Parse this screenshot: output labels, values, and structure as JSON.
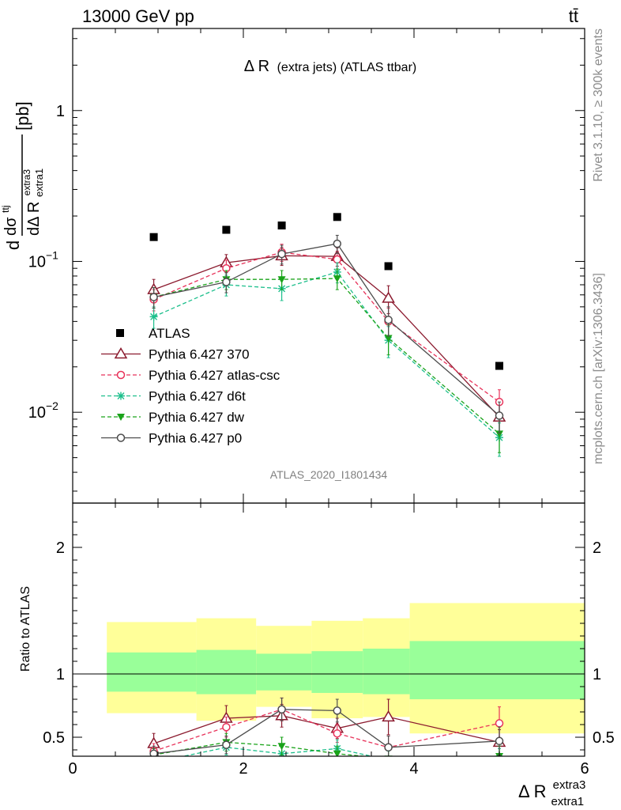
{
  "header": {
    "left": "13000 GeV pp",
    "right": "tt̄"
  },
  "side_texts": {
    "rivet": "Rivet 3.1.10, ≥ 300k events",
    "mcplots": "mcplots.cern.ch [arXiv:1306.3436]"
  },
  "chart_data": [
    {
      "type": "scatter",
      "title": "Δ R (extra jets) (ATLAS ttbar)",
      "title_main": "Δ R",
      "title_sub": "(extra jets) (ATLAS ttbar)",
      "analysis_id": "ATLAS_2020_I1801434",
      "ylabel": "dσ^ttj / dΔ R_extra1^extra3 [pb]",
      "ylabel_parts": {
        "d1": "d",
        "sigma": "dσ",
        "sigma_sup": "ttj",
        "den": "dΔ R",
        "den_sub": "extra1",
        "den_sup": "extra3",
        "unit": "[pb]"
      },
      "yscale": "log",
      "ylim": [
        0.0025,
        3.5
      ],
      "xlim": [
        0,
        6
      ],
      "y_ticks": [
        {
          "value": 0.01,
          "base": "10",
          "exp": "−2"
        },
        {
          "value": 0.1,
          "base": "10",
          "exp": "−1"
        },
        {
          "value": 1,
          "label": "1"
        }
      ],
      "legend_position": "lower-left",
      "data": {
        "name": "ATLAS",
        "x": [
          0.95,
          1.8,
          2.45,
          3.1,
          3.7,
          5.0
        ],
        "y": [
          0.145,
          0.162,
          0.173,
          0.197,
          0.093,
          0.0203
        ]
      },
      "series": [
        {
          "name": "Pythia 6.427 370",
          "color": "#8b1a2e",
          "dash": "solid",
          "marker": "triangle-open",
          "x": [
            0.95,
            1.8,
            2.45,
            3.1,
            3.7,
            5.0
          ],
          "y": [
            0.065,
            0.098,
            0.109,
            0.108,
            0.057,
            0.0093
          ],
          "err": [
            0.011,
            0.013,
            0.015,
            0.015,
            0.012,
            0.0022
          ]
        },
        {
          "name": "Pythia 6.427 atlas-csc",
          "color": "#e8325a",
          "dash": "dashed",
          "marker": "circle-open",
          "x": [
            0.95,
            1.8,
            2.45,
            3.1,
            3.7,
            5.0
          ],
          "y": [
            0.056,
            0.09,
            0.115,
            0.103,
            0.04,
            0.0117
          ],
          "err": [
            0.009,
            0.012,
            0.015,
            0.014,
            0.009,
            0.0024
          ]
        },
        {
          "name": "Pythia 6.427 d6t",
          "color": "#1dbf8c",
          "dash": "dashed",
          "marker": "star",
          "x": [
            0.95,
            1.8,
            2.45,
            3.1,
            3.7,
            5.0
          ],
          "y": [
            0.043,
            0.07,
            0.066,
            0.085,
            0.03,
            0.0068
          ],
          "err": [
            0.007,
            0.011,
            0.011,
            0.013,
            0.007,
            0.0017
          ]
        },
        {
          "name": "Pythia 6.427 dw",
          "color": "#1aa31a",
          "dash": "dashed",
          "marker": "triangle-down-filled",
          "x": [
            0.95,
            1.8,
            2.45,
            3.1,
            3.7,
            5.0
          ],
          "y": [
            0.058,
            0.076,
            0.076,
            0.077,
            0.031,
            0.0072
          ],
          "err": [
            0.009,
            0.011,
            0.011,
            0.012,
            0.007,
            0.0018
          ]
        },
        {
          "name": "Pythia 6.427 p0",
          "color": "#4d4d4d",
          "dash": "solid",
          "marker": "circle-open",
          "x": [
            0.95,
            1.8,
            2.45,
            3.1,
            3.7,
            5.0
          ],
          "y": [
            0.058,
            0.073,
            0.112,
            0.131,
            0.041,
            0.0095
          ],
          "err": [
            0.009,
            0.011,
            0.016,
            0.018,
            0.009,
            0.0022
          ]
        }
      ]
    },
    {
      "type": "scatter",
      "ylabel": "Ratio to ATLAS",
      "xlabel": "Δ R_extra1^extra3",
      "xlabel_parts": {
        "main": "Δ R",
        "sub": "extra1",
        "sup": "extra3"
      },
      "ylim": [
        0.35,
        2.35
      ],
      "xlim": [
        0,
        6
      ],
      "x_ticks": [
        "0",
        "2",
        "4",
        "6"
      ],
      "y_ticks": [
        {
          "value": 0.5,
          "label": "0.5"
        },
        {
          "value": 1,
          "label": "1"
        },
        {
          "value": 2,
          "label": "2"
        }
      ],
      "bands": {
        "x_edges": [
          0.4,
          1.45,
          2.15,
          2.8,
          3.4,
          3.95,
          6.0
        ],
        "yellow_lo": [
          0.69,
          0.63,
          0.74,
          0.65,
          0.66,
          0.53
        ],
        "yellow_hi": [
          1.41,
          1.44,
          1.38,
          1.42,
          1.44,
          1.56
        ],
        "green_lo": [
          0.86,
          0.84,
          0.87,
          0.85,
          0.84,
          0.8
        ],
        "green_hi": [
          1.17,
          1.19,
          1.16,
          1.18,
          1.2,
          1.26
        ]
      },
      "series": [
        {
          "name": "Pythia 6.427 370",
          "color": "#8b1a2e",
          "dash": "solid",
          "marker": "triangle-open",
          "x": [
            0.95,
            1.8,
            2.45,
            3.1,
            3.7,
            5.0
          ],
          "y": [
            0.45,
            0.65,
            0.67,
            0.57,
            0.66,
            0.46
          ],
          "err": [
            0.08,
            0.1,
            0.09,
            0.08,
            0.14,
            0.1
          ]
        },
        {
          "name": "Pythia 6.427 atlas-csc",
          "color": "#e8325a",
          "dash": "dashed",
          "marker": "circle-open",
          "x": [
            0.95,
            1.8,
            2.45,
            3.1,
            3.7,
            5.0
          ],
          "y": [
            0.39,
            0.58,
            0.72,
            0.53,
            0.42,
            0.61
          ],
          "err": [
            0.06,
            0.08,
            0.09,
            0.07,
            0.09,
            0.13
          ]
        },
        {
          "name": "Pythia 6.427 d6t",
          "color": "#1dbf8c",
          "dash": "dashed",
          "marker": "star",
          "x": [
            0.95,
            1.8,
            2.45,
            3.1,
            3.7,
            5.0
          ],
          "y": [
            0.3,
            0.42,
            0.37,
            0.41,
            0.32,
            0.33
          ],
          "err": [
            0.05,
            0.06,
            0.07,
            0.07,
            0.07,
            0.08
          ]
        },
        {
          "name": "Pythia 6.427 dw",
          "color": "#1aa31a",
          "dash": "dashed",
          "marker": "triangle-down-filled",
          "x": [
            0.95,
            1.8,
            2.45,
            3.1,
            3.7,
            5.0
          ],
          "y": [
            0.36,
            0.46,
            0.43,
            0.37,
            0.33,
            0.35
          ],
          "err": [
            0.05,
            0.07,
            0.07,
            0.06,
            0.07,
            0.08
          ]
        },
        {
          "name": "Pythia 6.427 p0",
          "color": "#4d4d4d",
          "dash": "solid",
          "marker": "circle-open",
          "x": [
            0.95,
            1.8,
            2.45,
            3.1,
            3.7,
            5.0
          ],
          "y": [
            0.37,
            0.44,
            0.72,
            0.71,
            0.42,
            0.47
          ],
          "err": [
            0.06,
            0.07,
            0.09,
            0.09,
            0.09,
            0.11
          ]
        }
      ]
    }
  ]
}
